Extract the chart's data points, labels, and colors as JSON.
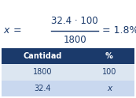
{
  "table_headers": [
    "Cantidad",
    "%"
  ],
  "table_rows": [
    [
      "1800",
      "100"
    ],
    [
      "32.4",
      "x"
    ]
  ],
  "header_bg": "#1b3a6b",
  "header_text_color": "#ffffff",
  "row1_bg": "#dce6f1",
  "row2_bg": "#c9d8ef",
  "cell_text_color": "#1b3a6b",
  "numerator": "32.4 · 100",
  "denominator": "1800",
  "result": "= 1.8%",
  "formula_color": "#1b3a6b",
  "bg_color": "#ffffff",
  "figsize": [
    1.73,
    1.24
  ],
  "dpi": 100
}
